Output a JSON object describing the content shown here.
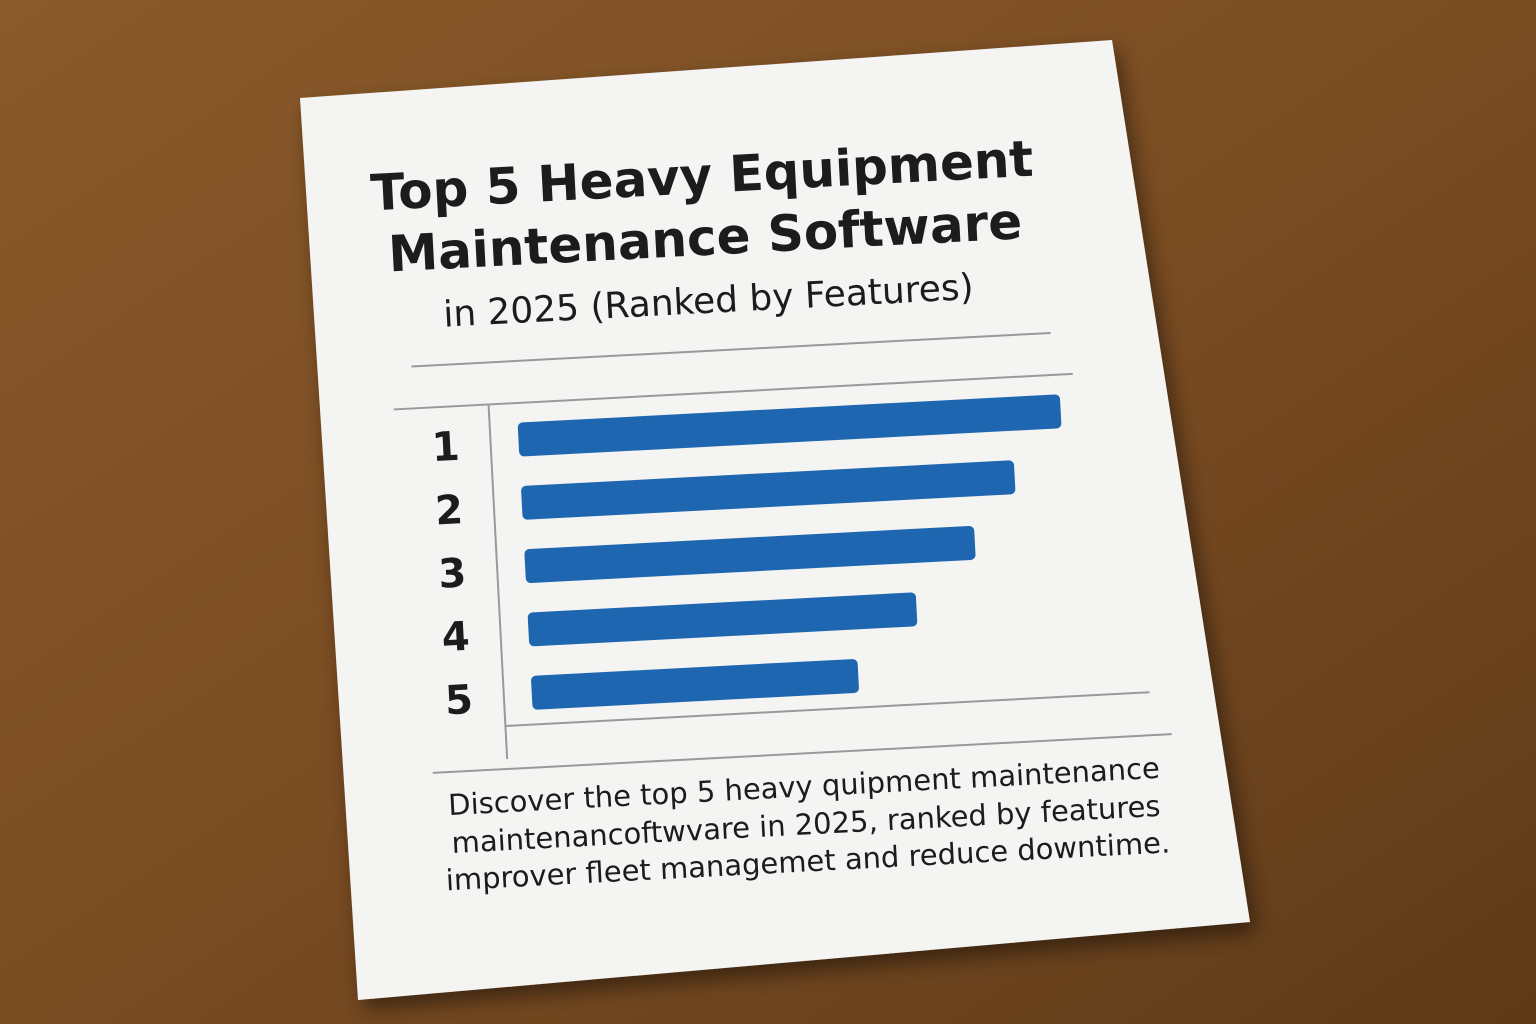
{
  "chart_data": {
    "type": "bar",
    "orientation": "horizontal",
    "title_lines": [
      "Top 5 Heavy Equipment",
      "Maintenance Software"
    ],
    "subtitle": "in 2025 (Ranked by Features)",
    "categories": [
      "1",
      "2",
      "3",
      "4",
      "5"
    ],
    "values": [
      88,
      80,
      73,
      63,
      53
    ],
    "color": "#1f66b0",
    "xlim": [
      0,
      100
    ],
    "description": "Discover the top 5 heavy quipment maintenance maintenancoftwvare in 2025, ranked by features improver fleet managemet and reduce downtime."
  }
}
